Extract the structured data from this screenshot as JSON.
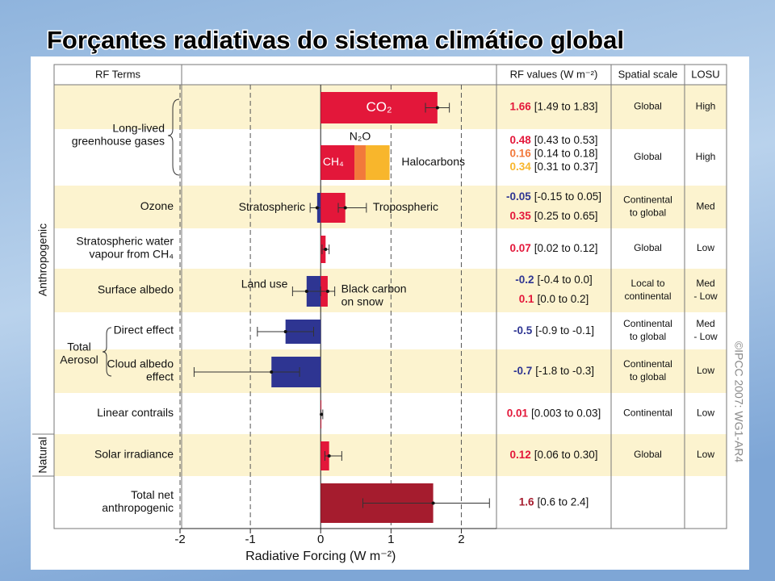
{
  "title": "Forçantes radiativas do sistema climático global",
  "chart_data": {
    "type": "forcing",
    "headers": [
      "RF Terms",
      "RF values (W m⁻²)",
      "Spatial scale",
      "LOSU"
    ],
    "groups": {
      "anthropogenic": "Anthropogenic",
      "natural": "Natural",
      "long_lived": [
        "Long-lived",
        "greenhouse gases"
      ],
      "aerosol": [
        "Total",
        "Aerosol"
      ]
    },
    "xlabel": "Radiative Forcing (W m⁻²)",
    "xlim": [
      -2,
      2.5
    ],
    "xticks": [
      -2,
      -1,
      0,
      1,
      2
    ],
    "grid": true,
    "copyright": "©IPCC 2007: WG1-AR4",
    "rows": [
      {
        "bars": [
          {
            "name": [
              "CO₂"
            ],
            "value": 1.66,
            "range": [
              1.49,
              1.83
            ],
            "range_label": "[1.49 to 1.83]",
            "color": "#e3173a"
          }
        ],
        "scale": [
          "Global"
        ],
        "losu": [
          "High"
        ]
      },
      {
        "stacked": true,
        "bars": [
          {
            "name": [
              "CH₄"
            ],
            "value": 0.48,
            "range": [
              0.43,
              0.53
            ],
            "range_label": "[0.43 to 0.53]",
            "color": "#e3173a"
          },
          {
            "name": [
              "N₂O"
            ],
            "value": 0.16,
            "range": [
              0.14,
              0.18
            ],
            "range_label": "[0.14 to 0.18]",
            "color": "#f2793b"
          },
          {
            "name": [
              "Halocarbons"
            ],
            "value": 0.34,
            "range": [
              0.31,
              0.37
            ],
            "range_label": "[0.31 to 0.37]",
            "color": "#f8b62c"
          }
        ],
        "scale": [
          "Global"
        ],
        "losu": [
          "High"
        ]
      },
      {
        "term": [
          "Ozone"
        ],
        "bars": [
          {
            "name": [
              "Stratospheric"
            ],
            "value": -0.05,
            "range": [
              -0.15,
              0.05
            ],
            "range_label": "[-0.15 to 0.05]",
            "color": "#2e3592"
          },
          {
            "name": [
              "Tropospheric"
            ],
            "value": 0.35,
            "range": [
              0.25,
              0.65
            ],
            "range_label": "[0.25 to 0.65]",
            "color": "#e3173a"
          }
        ],
        "scale": [
          "Continental",
          "to global"
        ],
        "losu": [
          "Med"
        ]
      },
      {
        "term": [
          "Stratospheric water",
          "vapour from CH₄"
        ],
        "bars": [
          {
            "value": 0.07,
            "range": [
              0.02,
              0.12
            ],
            "range_label": "[0.02 to 0.12]",
            "color": "#e3173a"
          }
        ],
        "scale": [
          "Global"
        ],
        "losu": [
          "Low"
        ]
      },
      {
        "term": [
          "Surface albedo"
        ],
        "bars": [
          {
            "name": [
              "Land use"
            ],
            "value": -0.2,
            "range": [
              -0.4,
              0.0
            ],
            "range_label": "[-0.4 to 0.0]",
            "color": "#2e3592"
          },
          {
            "name": [
              "Black carbon",
              "on snow"
            ],
            "value": 0.1,
            "range": [
              0.0,
              0.2
            ],
            "range_label": "[0.0 to 0.2]",
            "color": "#e3173a"
          }
        ],
        "scale": [
          "Local to",
          "continental"
        ],
        "losu": [
          "Med",
          "- Low"
        ]
      },
      {
        "term": [
          "Direct effect"
        ],
        "bars": [
          {
            "value": -0.5,
            "range": [
              -0.9,
              -0.1
            ],
            "range_label": "[-0.9 to -0.1]",
            "color": "#2e3592"
          }
        ],
        "scale": [
          "Continental",
          "to global"
        ],
        "losu": [
          "Med",
          "- Low"
        ]
      },
      {
        "term": [
          "Cloud albedo",
          "effect"
        ],
        "bars": [
          {
            "value": -0.7,
            "range": [
              -1.8,
              -0.3
            ],
            "range_label": "[-1.8 to -0.3]",
            "color": "#2e3592"
          }
        ],
        "scale": [
          "Continental",
          "to global"
        ],
        "losu": [
          "Low"
        ]
      },
      {
        "term": [
          "Linear contrails"
        ],
        "bars": [
          {
            "value": 0.01,
            "range": [
              0.003,
              0.03
            ],
            "range_label": "[0.003 to 0.03]",
            "color": "#e3173a"
          }
        ],
        "scale": [
          "Continental"
        ],
        "losu": [
          "Low"
        ]
      },
      {
        "term": [
          "Solar irradiance"
        ],
        "bars": [
          {
            "value": 0.12,
            "range": [
              0.06,
              0.3
            ],
            "range_label": "[0.06 to 0.30]",
            "color": "#e3173a"
          }
        ],
        "scale": [
          "Global"
        ],
        "losu": [
          "Low"
        ]
      },
      {
        "term": [
          "Total net",
          "anthropogenic"
        ],
        "bars": [
          {
            "value": 1.6,
            "range": [
              0.6,
              2.4
            ],
            "range_label": "[0.6 to 2.4]",
            "color": "#a51c2e"
          }
        ]
      }
    ]
  }
}
